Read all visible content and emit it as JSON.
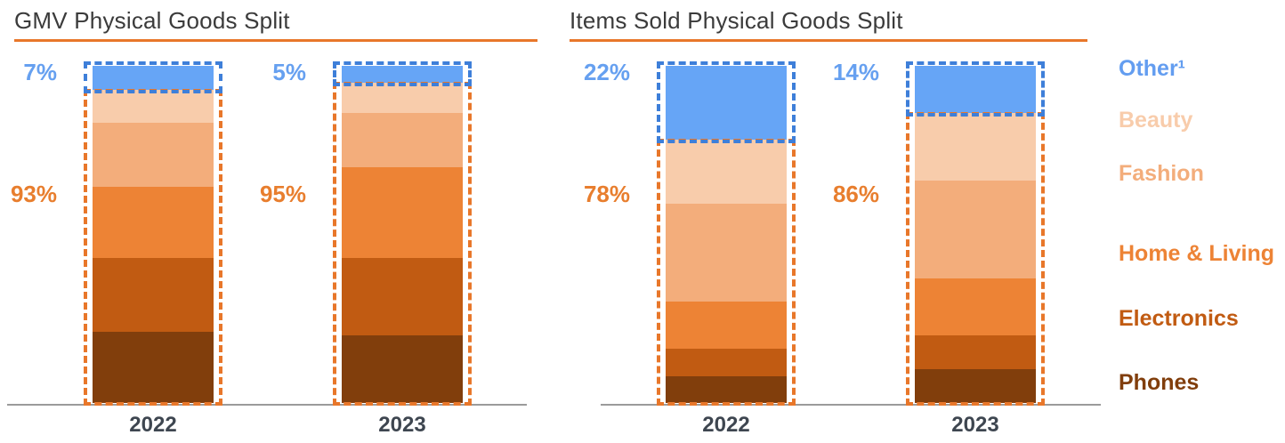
{
  "style": {
    "background": "#FFFFFF",
    "accent_orange": "#E8772A",
    "accent_blue": "#3E7FD9",
    "blue_label_color": "#66A0F0",
    "orange_label_color": "#E87E2E",
    "title_color": "#3B3B3B",
    "axis_color": "#9B9B9B",
    "year_label_color": "#3E4650"
  },
  "legend": [
    {
      "label": "Other¹",
      "color": "#639DF0"
    },
    {
      "label": "Beauty",
      "color": "#F8CCAB"
    },
    {
      "label": "Fashion",
      "color": "#F3AD7B"
    },
    {
      "label": "Home & Living",
      "color": "#ED8335"
    },
    {
      "label": "Electronics",
      "color": "#C15B12"
    },
    {
      "label": "Phones",
      "color": "#813E0C"
    }
  ],
  "chart_data": [
    {
      "type": "bar",
      "stacked": true,
      "title": "GMV Physical Goods Split",
      "categories": [
        "2022",
        "2023"
      ],
      "unit": "%",
      "ylim": [
        0,
        100
      ],
      "legend_position": "right",
      "series": [
        {
          "name": "Other",
          "values": [
            7,
            5
          ],
          "color": "#66A5F6"
        },
        {
          "name": "Beauty",
          "values": [
            10,
            9
          ],
          "color": "#F8CCAB"
        },
        {
          "name": "Fashion",
          "values": [
            19,
            16
          ],
          "color": "#F3AD7B"
        },
        {
          "name": "Home & Living",
          "values": [
            21,
            27
          ],
          "color": "#ED8335"
        },
        {
          "name": "Electronics",
          "values": [
            22,
            23
          ],
          "color": "#C15B12"
        },
        {
          "name": "Phones",
          "values": [
            21,
            20
          ],
          "color": "#813E0C"
        }
      ],
      "annotations": {
        "other_pct": [
          "7%",
          "5%"
        ],
        "physical_goods_pct": [
          "93%",
          "95%"
        ]
      },
      "footnote_marker": "1"
    },
    {
      "type": "bar",
      "stacked": true,
      "title": "Items Sold Physical Goods Split",
      "categories": [
        "2022",
        "2023"
      ],
      "unit": "%",
      "ylim": [
        0,
        100
      ],
      "legend_position": "right",
      "series": [
        {
          "name": "Other",
          "values": [
            22,
            14
          ],
          "color": "#66A5F6"
        },
        {
          "name": "Beauty",
          "values": [
            19,
            20
          ],
          "color": "#F8CCAB"
        },
        {
          "name": "Fashion",
          "values": [
            29,
            29
          ],
          "color": "#F3AD7B"
        },
        {
          "name": "Home & Living",
          "values": [
            14,
            17
          ],
          "color": "#ED8335"
        },
        {
          "name": "Electronics",
          "values": [
            8,
            10
          ],
          "color": "#C15B12"
        },
        {
          "name": "Phones",
          "values": [
            8,
            10
          ],
          "color": "#813E0C"
        }
      ],
      "annotations": {
        "other_pct": [
          "22%",
          "14%"
        ],
        "physical_goods_pct": [
          "78%",
          "86%"
        ]
      }
    }
  ]
}
